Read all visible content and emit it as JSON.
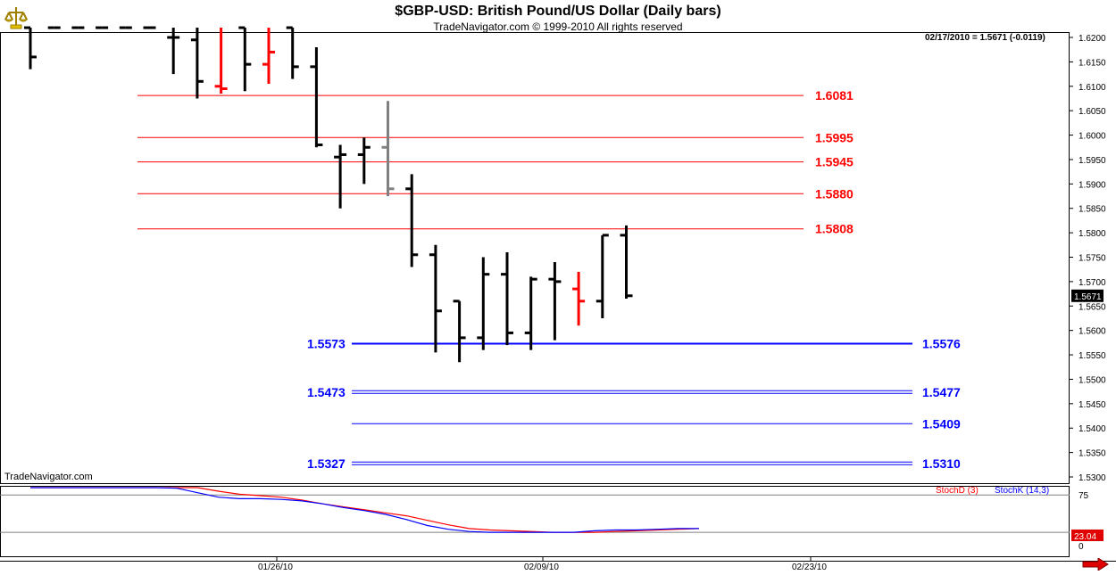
{
  "chart_data": {
    "type": "ohlc",
    "title": "$GBP-USD:  British Pound/US Dollar  (Daily bars)",
    "subtitle": "TradeNavigator.com © 1999-2010 All rights reserved",
    "quote": "02/17/2010 = 1.5671 (-0.0119)",
    "last_price_label": "1.5671",
    "watermark": "TradeNavigator.com",
    "ylim": [
      1.529,
      1.622
    ],
    "yticks": [
      "1.6200",
      "1.6150",
      "1.6100",
      "1.6050",
      "1.6000",
      "1.5950",
      "1.5900",
      "1.5850",
      "1.5800",
      "1.5750",
      "1.5700",
      "1.5650",
      "1.5600",
      "1.5550",
      "1.5500",
      "1.5450",
      "1.5400",
      "1.5350",
      "1.5300"
    ],
    "xticks": [
      "01/26/10",
      "02/09/10",
      "02/23/10"
    ],
    "bars": [
      {
        "o": 1.622,
        "h": 1.622,
        "l": 1.6135,
        "c": 1.616,
        "color": "#000000"
      },
      {
        "o": 1.622,
        "h": 1.622,
        "l": 1.622,
        "c": 1.622,
        "color": "#000000"
      },
      {
        "o": 1.622,
        "h": 1.622,
        "l": 1.622,
        "c": 1.622,
        "color": "#000000"
      },
      {
        "o": 1.622,
        "h": 1.622,
        "l": 1.622,
        "c": 1.622,
        "color": "#000000"
      },
      {
        "o": 1.622,
        "h": 1.622,
        "l": 1.622,
        "c": 1.622,
        "color": "#000000"
      },
      {
        "o": 1.622,
        "h": 1.622,
        "l": 1.622,
        "c": 1.622,
        "color": "#000000"
      },
      {
        "o": 1.62,
        "h": 1.622,
        "l": 1.6125,
        "c": 1.62,
        "color": "#000000"
      },
      {
        "o": 1.6195,
        "h": 1.622,
        "l": 1.6075,
        "c": 1.611,
        "color": "#000000"
      },
      {
        "o": 1.61,
        "h": 1.622,
        "l": 1.6085,
        "c": 1.6095,
        "color": "#ff0000"
      },
      {
        "o": 1.622,
        "h": 1.622,
        "l": 1.609,
        "c": 1.6145,
        "color": "#000000"
      },
      {
        "o": 1.6145,
        "h": 1.622,
        "l": 1.6105,
        "c": 1.617,
        "color": "#ff0000"
      },
      {
        "o": 1.622,
        "h": 1.622,
        "l": 1.6115,
        "c": 1.614,
        "color": "#000000"
      },
      {
        "o": 1.614,
        "h": 1.618,
        "l": 1.5975,
        "c": 1.598,
        "color": "#000000"
      },
      {
        "o": 1.5955,
        "h": 1.598,
        "l": 1.585,
        "c": 1.596,
        "color": "#000000"
      },
      {
        "o": 1.596,
        "h": 1.5995,
        "l": 1.59,
        "c": 1.5975,
        "color": "#000000"
      },
      {
        "o": 1.5975,
        "h": 1.607,
        "l": 1.5875,
        "c": 1.589,
        "color": "#808080"
      },
      {
        "o": 1.589,
        "h": 1.592,
        "l": 1.573,
        "c": 1.5755,
        "color": "#000000"
      },
      {
        "o": 1.5755,
        "h": 1.5775,
        "l": 1.5555,
        "c": 1.564,
        "color": "#000000"
      },
      {
        "o": 1.566,
        "h": 1.566,
        "l": 1.5535,
        "c": 1.5585,
        "color": "#000000"
      },
      {
        "o": 1.5585,
        "h": 1.575,
        "l": 1.556,
        "c": 1.5715,
        "color": "#000000"
      },
      {
        "o": 1.5715,
        "h": 1.576,
        "l": 1.557,
        "c": 1.5595,
        "color": "#000000"
      },
      {
        "o": 1.5595,
        "h": 1.571,
        "l": 1.556,
        "c": 1.5705,
        "color": "#000000"
      },
      {
        "o": 1.5705,
        "h": 1.574,
        "l": 1.558,
        "c": 1.57,
        "color": "#000000"
      },
      {
        "o": 1.5685,
        "h": 1.572,
        "l": 1.561,
        "c": 1.566,
        "color": "#ff0000"
      },
      {
        "o": 1.566,
        "h": 1.5795,
        "l": 1.5625,
        "c": 1.5795,
        "color": "#000000"
      },
      {
        "o": 1.5795,
        "h": 1.5815,
        "l": 1.5665,
        "c": 1.5671,
        "color": "#000000"
      }
    ],
    "resistance_levels": [
      {
        "value": 1.6081,
        "label": "1.6081"
      },
      {
        "value": 1.5995,
        "label": "1.5995"
      },
      {
        "value": 1.5945,
        "label": "1.5945"
      },
      {
        "value": 1.588,
        "label": "1.5880"
      },
      {
        "value": 1.5808,
        "label": "1.5808"
      }
    ],
    "support_levels": [
      {
        "value": 1.5573,
        "left_label": "1.5573",
        "right_label": "1.5576",
        "double": false,
        "thick": true
      },
      {
        "value": 1.5473,
        "left_label": "1.5473",
        "right_label": "1.5477",
        "double": true,
        "thick": false
      },
      {
        "value": 1.5409,
        "left_label": "",
        "right_label": "1.5409",
        "double": false,
        "thick": false
      },
      {
        "value": 1.5327,
        "left_label": "1.5327",
        "right_label": "1.5310",
        "double": true,
        "thick": false
      }
    ],
    "indicator": {
      "legend": [
        {
          "name": "StochD (3)",
          "color": "#ff0000"
        },
        {
          "name": "StochK (14,3)",
          "color": "#0000ff"
        }
      ],
      "ylim": [
        0,
        100
      ],
      "yticks": [
        "75",
        "0"
      ],
      "last_label": "23.04",
      "ref_lines": [
        75,
        25
      ],
      "stochD": [
        86,
        88,
        90,
        91,
        91,
        91,
        90,
        88,
        85,
        80,
        76,
        74,
        72,
        68,
        63,
        59,
        55,
        51,
        47,
        41,
        35,
        30,
        28,
        27,
        26,
        25,
        25,
        25,
        26,
        27,
        28,
        29,
        30
      ],
      "stochK": [
        88,
        90,
        92,
        92,
        91,
        90,
        88,
        84,
        78,
        72,
        70,
        70,
        69,
        67,
        63,
        58,
        54,
        49,
        42,
        34,
        29,
        26,
        25,
        25,
        25,
        25,
        25,
        27,
        28,
        28,
        29,
        30,
        30
      ]
    }
  },
  "colors": {
    "resistance": "#ff0000",
    "support": "#0000ff",
    "price_tag_bg": "#000000"
  },
  "icons": {
    "logo": "trade-navigator-logo",
    "scroll": "scroll-right-arrow-icon"
  }
}
